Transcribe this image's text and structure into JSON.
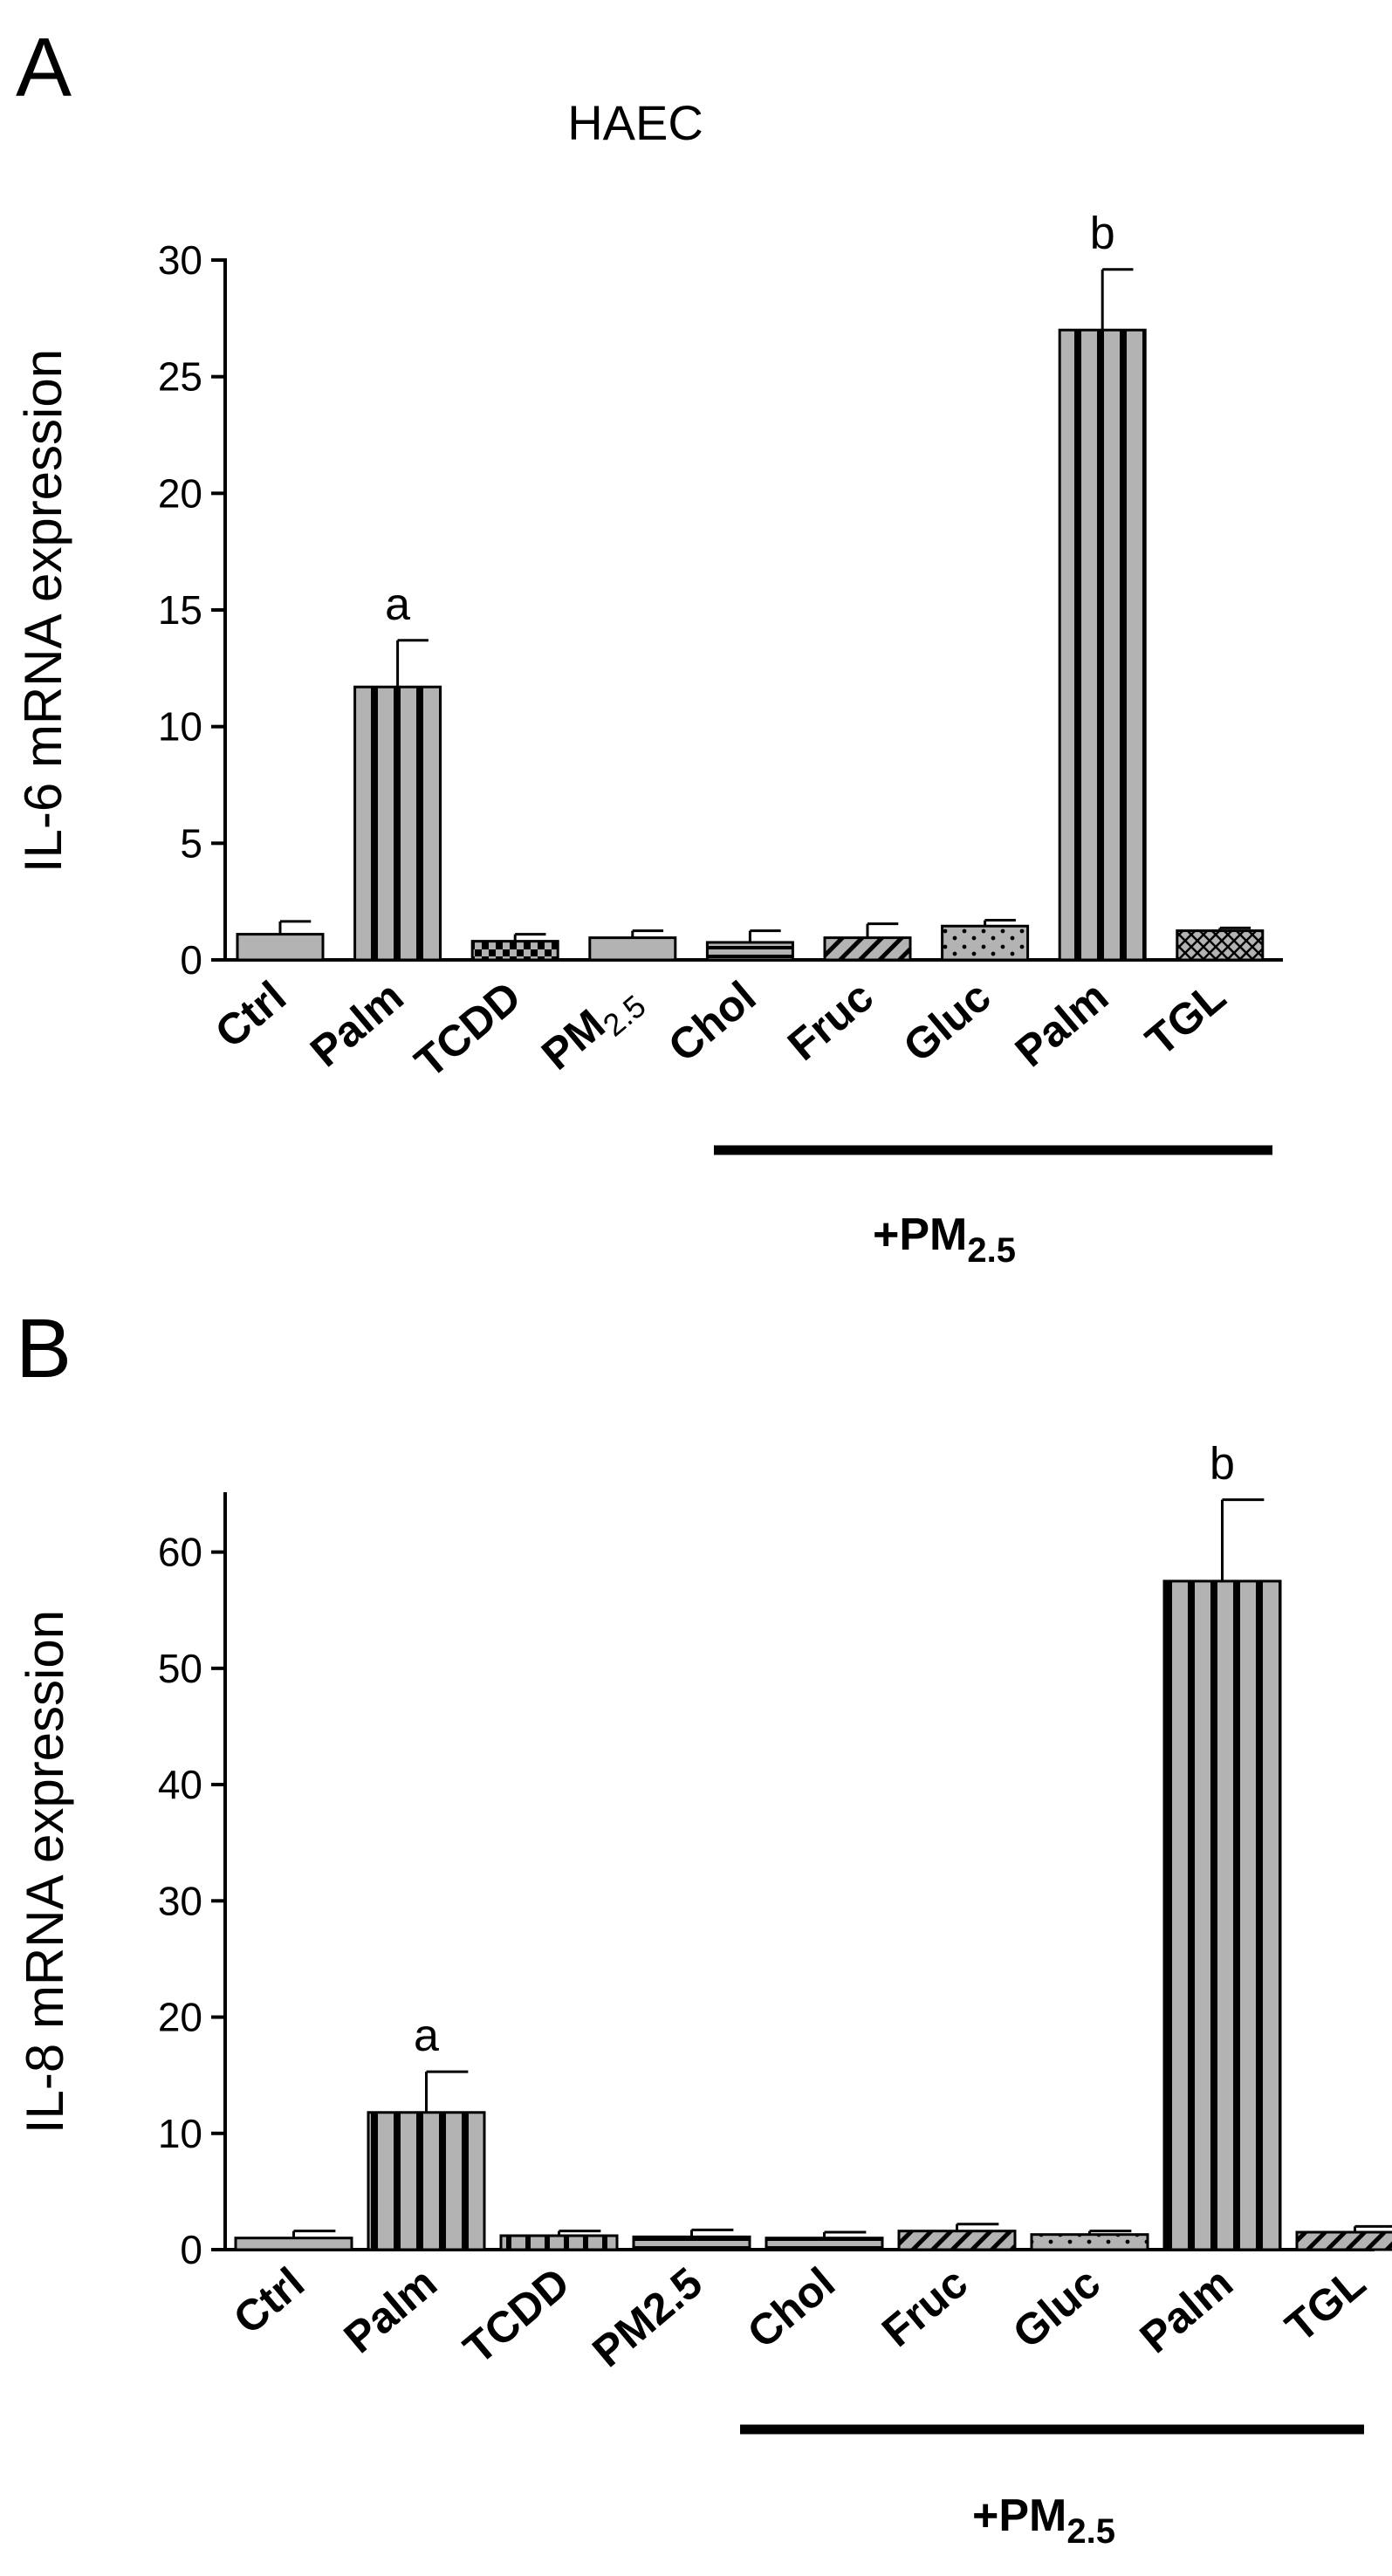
{
  "panels": [
    {
      "letter": "A",
      "title": "HAEC",
      "group_label": "+PM",
      "group_label_sub": "2.5",
      "chart_data": {
        "type": "bar",
        "ylabel": "IL-6 mRNA expression",
        "ylim": [
          0,
          30
        ],
        "yticks": [
          0,
          5,
          10,
          15,
          20,
          25,
          30
        ],
        "categories": [
          {
            "text": "Ctrl",
            "sub": ""
          },
          {
            "text": "Palm",
            "sub": ""
          },
          {
            "text": "TCDD",
            "sub": ""
          },
          {
            "text": "PM",
            "sub": "2.5"
          },
          {
            "text": "Chol",
            "sub": ""
          },
          {
            "text": "Fruc",
            "sub": ""
          },
          {
            "text": "Gluc",
            "sub": ""
          },
          {
            "text": "Palm",
            "sub": ""
          },
          {
            "text": "TGL",
            "sub": ""
          }
        ],
        "values": [
          1.1,
          11.7,
          0.8,
          0.95,
          0.75,
          0.95,
          1.45,
          27.0,
          1.25
        ],
        "errors": [
          0.55,
          2.0,
          0.3,
          0.3,
          0.5,
          0.6,
          0.25,
          2.6,
          0.12
        ],
        "patterns": [
          "plain",
          "vstripe",
          "checker",
          "plain",
          "hstripe",
          "diag",
          "dots",
          "vstripe",
          "crosshatch"
        ],
        "significance": [
          "",
          "a",
          "",
          "",
          "",
          "",
          "",
          "b",
          ""
        ],
        "grid": false,
        "legend": "none",
        "bar_color": "#b3b3b3"
      }
    },
    {
      "letter": "B",
      "title": "",
      "group_label": "+PM",
      "group_label_sub": "2.5",
      "chart_data": {
        "type": "bar",
        "ylabel": "IL-8 mRNA expression",
        "ylim": [
          0,
          65
        ],
        "yticks": [
          0,
          10,
          20,
          30,
          40,
          50,
          60
        ],
        "categories": [
          {
            "text": "Ctrl",
            "sub": ""
          },
          {
            "text": "Palm",
            "sub": ""
          },
          {
            "text": "TCDD",
            "sub": ""
          },
          {
            "text": "PM2.5",
            "sub": ""
          },
          {
            "text": "Chol",
            "sub": ""
          },
          {
            "text": "Fruc",
            "sub": ""
          },
          {
            "text": "Gluc",
            "sub": ""
          },
          {
            "text": "Palm",
            "sub": ""
          },
          {
            "text": "TGL",
            "sub": ""
          }
        ],
        "values": [
          1.0,
          11.8,
          1.2,
          1.1,
          1.0,
          1.6,
          1.3,
          57.5,
          1.5
        ],
        "errors": [
          0.6,
          3.5,
          0.4,
          0.6,
          0.5,
          0.6,
          0.3,
          7.0,
          0.5
        ],
        "patterns": [
          "plain",
          "vstripe",
          "vstripe2",
          "hstripe",
          "hstripe",
          "diag",
          "dots",
          "vstripe",
          "diag"
        ],
        "significance": [
          "",
          "a",
          "",
          "",
          "",
          "",
          "",
          "b",
          ""
        ],
        "grid": false,
        "legend": "none",
        "bar_color": "#b3b3b3"
      }
    }
  ]
}
